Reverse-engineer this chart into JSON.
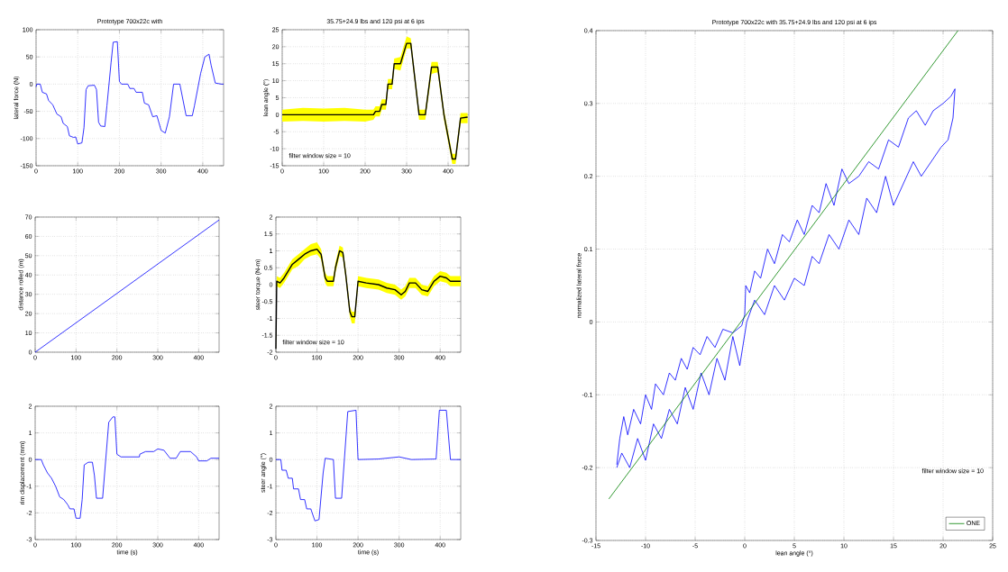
{
  "chart_data": [
    {
      "type": "line",
      "title": "Prototype 700x22c with",
      "ylabel": "lateral force (N)",
      "xlim": [
        0,
        450
      ],
      "ylim": [
        -150,
        100
      ],
      "xticks": [
        0,
        100,
        200,
        300,
        400
      ],
      "yticks": [
        -150,
        -100,
        -50,
        0,
        50,
        100
      ],
      "grid": true,
      "series": [
        {
          "color": "#0000ff",
          "x": [
            0,
            2,
            10,
            15,
            25,
            30,
            40,
            50,
            60,
            65,
            75,
            80,
            90,
            95,
            100,
            110,
            115,
            120,
            125,
            140,
            145,
            150,
            155,
            165,
            170,
            180,
            185,
            195,
            200,
            205,
            220,
            225,
            235,
            240,
            255,
            260,
            270,
            280,
            290,
            300,
            310,
            320,
            330,
            345,
            360,
            375,
            380,
            395,
            405,
            415,
            420,
            430,
            445,
            450
          ],
          "values": [
            -5,
            0,
            0,
            -15,
            -18,
            -30,
            -38,
            -55,
            -60,
            -72,
            -78,
            -95,
            -98,
            -97,
            -110,
            -108,
            -80,
            -10,
            -3,
            -2,
            -10,
            -70,
            -77,
            -78,
            -40,
            40,
            77,
            78,
            5,
            0,
            0,
            -8,
            -8,
            -15,
            -15,
            -35,
            -38,
            -60,
            -58,
            -85,
            -90,
            -60,
            0,
            0,
            -58,
            -58,
            -40,
            20,
            50,
            55,
            35,
            2,
            0,
            0
          ]
        }
      ]
    },
    {
      "type": "line",
      "title": "35.75+24.9 lbs and 120 psi at 6 ips",
      "ylabel": "lean angle (°)",
      "xlim": [
        0,
        450
      ],
      "ylim": [
        -15,
        25
      ],
      "xticks": [
        0,
        100,
        200,
        300,
        400
      ],
      "yticks": [
        -15,
        -10,
        -5,
        0,
        5,
        10,
        15,
        20,
        25
      ],
      "grid": true,
      "annotations": [
        "filter window size = 10"
      ],
      "series": [
        {
          "color": "#000000",
          "x": [
            0,
            50,
            100,
            150,
            200,
            220,
            225,
            235,
            240,
            250,
            255,
            265,
            270,
            285,
            300,
            310,
            330,
            345,
            360,
            375,
            390,
            410,
            418,
            430,
            447
          ],
          "values": [
            0,
            0,
            0,
            0,
            0,
            0,
            1,
            1,
            3,
            3,
            9,
            9,
            15,
            15,
            21,
            21,
            0,
            0,
            14,
            14,
            0,
            -13,
            -13,
            -1,
            -0.7
          ],
          "lower": [
            -2,
            -1.8,
            -2,
            -1.8,
            -2,
            -1.5,
            -0.5,
            -0.5,
            1.5,
            1.5,
            7.5,
            7.5,
            13.5,
            13,
            19.5,
            19.5,
            -1.5,
            -1.5,
            12,
            12.5,
            -1.5,
            -14.5,
            -14.5,
            -2.5,
            -2.5
          ],
          "upper": [
            1.5,
            2,
            1.8,
            2,
            1.5,
            1.5,
            2.5,
            2.5,
            4.5,
            4.5,
            10.5,
            10.5,
            16.5,
            17,
            23,
            22.5,
            1.5,
            1.5,
            15.5,
            15.5,
            1.5,
            -11.5,
            -11.5,
            0.5,
            0.5
          ]
        }
      ]
    },
    {
      "type": "line",
      "ylabel": "distance rolled (m)",
      "xlim": [
        0,
        450
      ],
      "ylim": [
        0,
        70
      ],
      "xticks": [
        0,
        100,
        200,
        300,
        400
      ],
      "yticks": [
        0,
        10,
        20,
        30,
        40,
        50,
        60,
        70
      ],
      "grid": true,
      "series": [
        {
          "color": "#0000ff",
          "x": [
            0,
            450
          ],
          "values": [
            0,
            68.5
          ]
        }
      ]
    },
    {
      "type": "line",
      "ylabel": "steer torque (N-m)",
      "xlim": [
        0,
        450
      ],
      "ylim": [
        -2,
        2
      ],
      "xticks": [
        0,
        100,
        200,
        300,
        400
      ],
      "yticks": [
        -2,
        -1.5,
        -1,
        -0.5,
        0,
        0.5,
        1,
        1.5,
        2
      ],
      "grid": true,
      "annotations": [
        "filter window size = 10"
      ],
      "series": [
        {
          "color": "#000000",
          "x": [
            0,
            2,
            10,
            20,
            30,
            40,
            55,
            70,
            85,
            100,
            110,
            120,
            125,
            140,
            145,
            155,
            163,
            170,
            180,
            185,
            192,
            200,
            220,
            250,
            270,
            290,
            305,
            315,
            325,
            340,
            355,
            370,
            385,
            400,
            415,
            425,
            450
          ],
          "values": [
            -1.9,
            0.1,
            0.05,
            0.2,
            0.4,
            0.6,
            0.75,
            0.9,
            1.0,
            1.05,
            0.9,
            0.2,
            0.1,
            0.1,
            0.5,
            1.0,
            0.95,
            0.3,
            -0.8,
            -0.95,
            -0.95,
            0.1,
            0.05,
            0,
            -0.1,
            -0.15,
            -0.3,
            -0.2,
            0.05,
            0.05,
            -0.15,
            -0.2,
            0.1,
            0.25,
            0.2,
            0.1,
            0.1
          ],
          "lower": [
            -2,
            -0.05,
            -0.1,
            0.05,
            0.25,
            0.45,
            0.55,
            0.75,
            0.85,
            0.9,
            0.75,
            0.05,
            -0.05,
            -0.05,
            0.35,
            0.85,
            0.8,
            0.15,
            -0.95,
            -1.15,
            -1.15,
            -0.05,
            -0.1,
            -0.15,
            -0.25,
            -0.3,
            -0.45,
            -0.35,
            -0.1,
            -0.1,
            -0.3,
            -0.35,
            -0.05,
            0.1,
            0.05,
            -0.05,
            -0.05
          ],
          "upper": [
            -1.5,
            0.25,
            0.2,
            0.35,
            0.55,
            0.75,
            0.9,
            1.05,
            1.2,
            1.25,
            1.05,
            0.35,
            0.25,
            0.25,
            0.65,
            1.15,
            1.1,
            0.45,
            -0.65,
            -0.8,
            -0.8,
            0.25,
            0.2,
            0.15,
            0.05,
            0,
            -0.15,
            -0.05,
            0.2,
            0.2,
            0,
            -0.05,
            0.25,
            0.4,
            0.35,
            0.25,
            0.25
          ]
        }
      ]
    },
    {
      "type": "line",
      "xlabel": "time (s)",
      "ylabel": "rim displacement (mm)",
      "xlim": [
        0,
        450
      ],
      "ylim": [
        -3,
        2
      ],
      "xticks": [
        0,
        100,
        200,
        300,
        400
      ],
      "yticks": [
        -3,
        -2,
        -1,
        0,
        1,
        2
      ],
      "grid": true,
      "series": [
        {
          "color": "#0000ff",
          "x": [
            0,
            15,
            20,
            30,
            40,
            50,
            60,
            70,
            80,
            85,
            95,
            100,
            110,
            115,
            120,
            130,
            140,
            145,
            150,
            165,
            170,
            180,
            190,
            195,
            200,
            210,
            255,
            256,
            270,
            290,
            300,
            315,
            330,
            345,
            355,
            380,
            395,
            400,
            420,
            430,
            450
          ],
          "values": [
            0,
            0,
            -0.2,
            -0.5,
            -0.7,
            -1.0,
            -1.4,
            -1.5,
            -1.7,
            -1.85,
            -1.85,
            -2.2,
            -2.2,
            -1.5,
            -0.2,
            -0.1,
            -0.1,
            -0.6,
            -1.45,
            -1.45,
            -0.5,
            1.4,
            1.6,
            1.6,
            0.2,
            0.1,
            0.1,
            0.2,
            0.3,
            0.3,
            0.4,
            0.35,
            0.05,
            0.05,
            0.3,
            0.3,
            0.1,
            -0.05,
            -0.05,
            0.05,
            0.05
          ]
        }
      ]
    },
    {
      "type": "line",
      "xlabel": "time (s)",
      "ylabel": "steer angle (°)",
      "xlim": [
        0,
        450
      ],
      "ylim": [
        -3,
        2
      ],
      "xticks": [
        0,
        100,
        200,
        300,
        400
      ],
      "yticks": [
        -3,
        -2,
        -1,
        0,
        1,
        2
      ],
      "grid": true,
      "series": [
        {
          "color": "#0000ff",
          "x": [
            0,
            12,
            15,
            25,
            30,
            40,
            43,
            55,
            60,
            70,
            75,
            85,
            95,
            105,
            115,
            120,
            140,
            145,
            160,
            175,
            195,
            200,
            250,
            300,
            330,
            390,
            398,
            415,
            425,
            450
          ],
          "values": [
            0,
            0,
            -0.4,
            -0.4,
            -0.7,
            -0.7,
            -1.1,
            -1.1,
            -1.5,
            -1.5,
            -1.85,
            -1.85,
            -2.3,
            -2.25,
            -0.5,
            0.05,
            0,
            -1.45,
            -1.45,
            1.8,
            1.85,
            0,
            0.02,
            0.1,
            0,
            0.02,
            1.85,
            1.85,
            0,
            0
          ]
        }
      ]
    },
    {
      "type": "line",
      "title": "Prototype 700x22c with 35.75+24.9 lbs and 120 psi at 6 ips",
      "xlabel": "lean angle (°)",
      "ylabel": "normalized lateral force",
      "xlim": [
        -15,
        25
      ],
      "ylim": [
        -0.3,
        0.4
      ],
      "xticks": [
        -15,
        -10,
        -5,
        0,
        5,
        10,
        15,
        20,
        25
      ],
      "yticks": [
        -0.3,
        -0.2,
        -0.1,
        0,
        0.1,
        0.2,
        0.3,
        0.4
      ],
      "grid": true,
      "legend": "bottom right",
      "annotations": [
        "filter window size = 10"
      ],
      "series": [
        {
          "color": "#0000ff",
          "x": [
            -12.9,
            -12.6,
            -12.2,
            -11.8,
            -11.2,
            -10.5,
            -10,
            -9.4,
            -9,
            -8.2,
            -7.6,
            -7,
            -6.4,
            -5.8,
            -5.2,
            -4.5,
            -3.8,
            -3,
            -2.2,
            -1.2,
            -0.3,
            0,
            0.1,
            0.5,
            1,
            1.6,
            2.3,
            3,
            3.8,
            4.5,
            5.3,
            6,
            6.8,
            7.5,
            8.2,
            9,
            9.8,
            10.5,
            11.5,
            12.5,
            13.5,
            14.5,
            15.5,
            16.5,
            17.3,
            18.2,
            19,
            20,
            20.8,
            21.2,
            21,
            20.5,
            19.8,
            18.8,
            17.8,
            17,
            16,
            15,
            14.2,
            13.3,
            12.3,
            11.5,
            10.5,
            9.5,
            8.5,
            7.5,
            6.8,
            6,
            5,
            4,
            3,
            2,
            1,
            0.2,
            -0.5,
            -1.2,
            -2,
            -2.8,
            -3.6,
            -4.4,
            -5.2,
            -6,
            -6.8,
            -7.6,
            -8.4,
            -9.2,
            -10,
            -10.8,
            -11.6,
            -12.4,
            -12.9
          ],
          "values": [
            -0.196,
            -0.16,
            -0.13,
            -0.155,
            -0.12,
            -0.14,
            -0.1,
            -0.12,
            -0.085,
            -0.1,
            -0.07,
            -0.08,
            -0.05,
            -0.065,
            -0.035,
            -0.045,
            -0.02,
            -0.035,
            -0.01,
            -0.015,
            -0.005,
            0.01,
            0.05,
            0.04,
            0.07,
            0.06,
            0.1,
            0.08,
            0.12,
            0.11,
            0.14,
            0.12,
            0.16,
            0.15,
            0.19,
            0.16,
            0.21,
            0.19,
            0.2,
            0.22,
            0.21,
            0.25,
            0.24,
            0.28,
            0.29,
            0.27,
            0.29,
            0.3,
            0.31,
            0.32,
            0.28,
            0.25,
            0.24,
            0.22,
            0.2,
            0.22,
            0.19,
            0.16,
            0.2,
            0.15,
            0.17,
            0.12,
            0.14,
            0.1,
            0.12,
            0.08,
            0.09,
            0.05,
            0.06,
            0.03,
            0.05,
            0.01,
            0.03,
            0,
            -0.06,
            -0.02,
            -0.08,
            -0.05,
            -0.1,
            -0.07,
            -0.12,
            -0.09,
            -0.14,
            -0.12,
            -0.16,
            -0.14,
            -0.19,
            -0.16,
            -0.2,
            -0.18,
            -0.2
          ]
        },
        {
          "name": "ONE",
          "color": "#008000",
          "x": [
            -13.7,
            21.5
          ],
          "values": [
            -0.243,
            0.4
          ]
        }
      ]
    }
  ]
}
